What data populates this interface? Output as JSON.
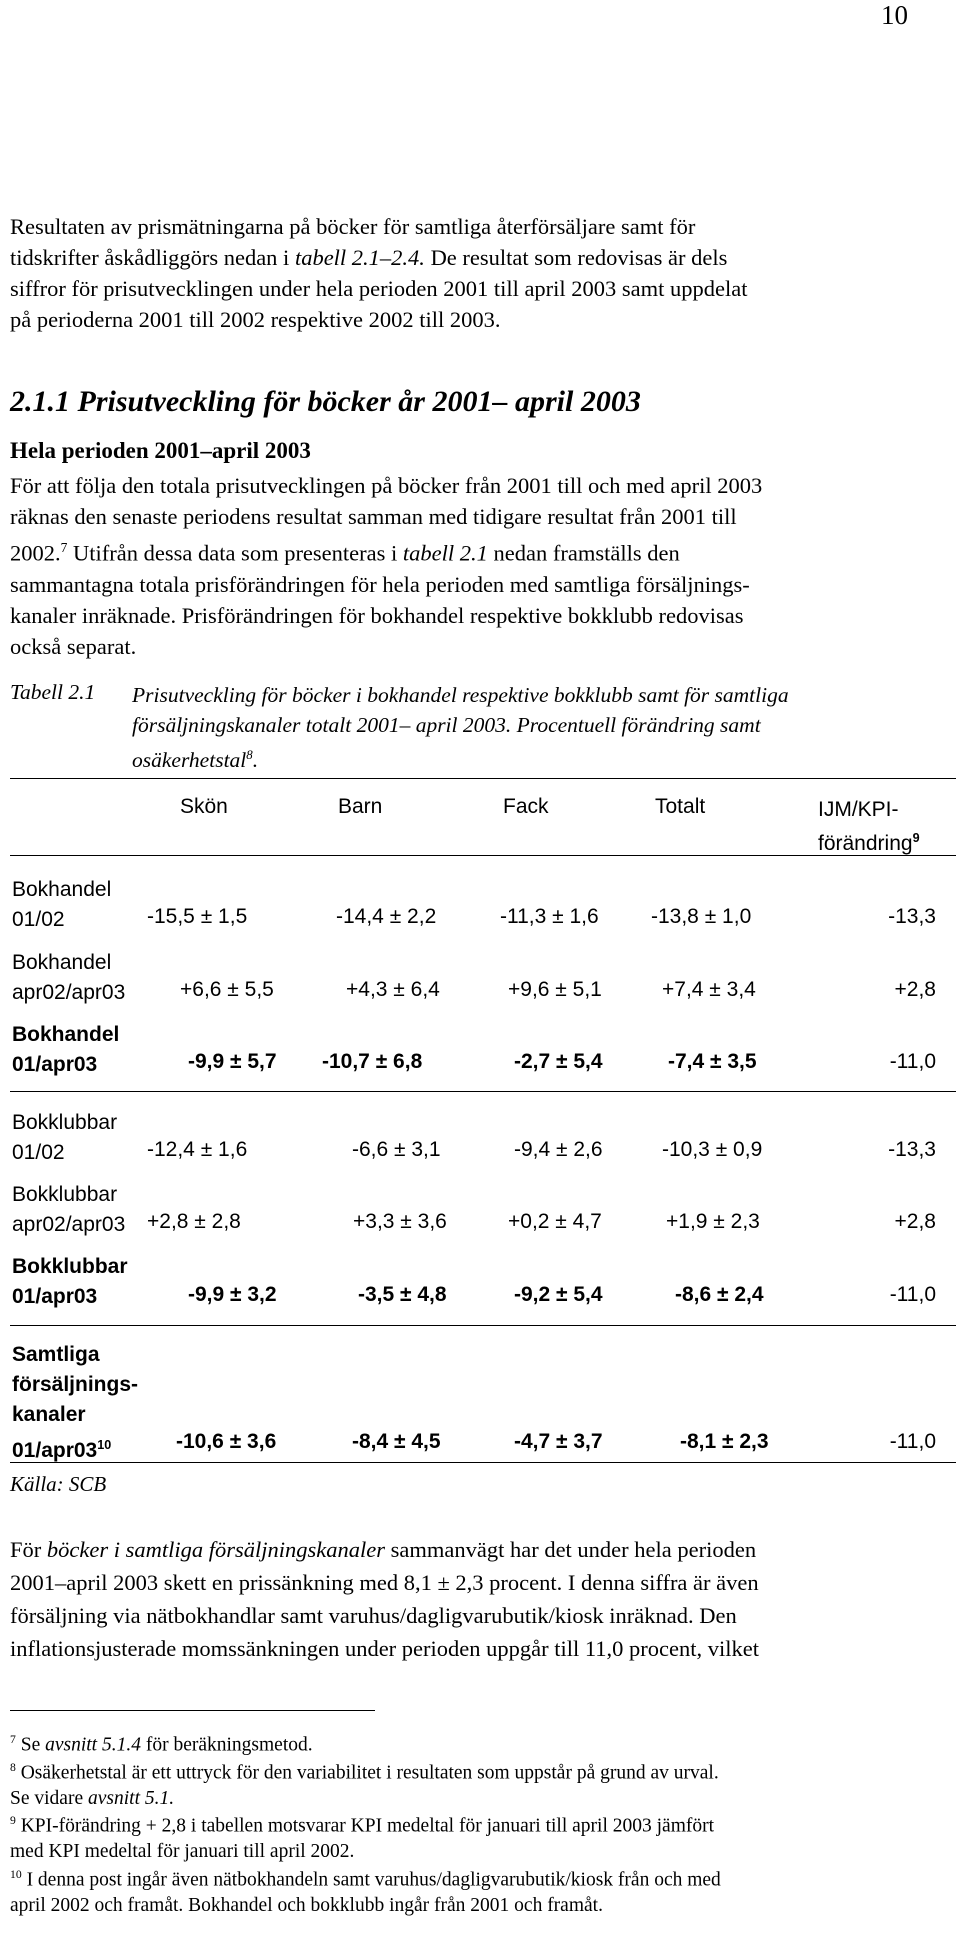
{
  "page_number": "10",
  "intro": {
    "p1": "Resultaten av prismätningarna på böcker för samtliga återförsäljare samt för",
    "p2a": "tidskrifter åskådliggörs nedan i ",
    "p2_ref": "tabell 2.1–2.4.",
    "p2b": " De resultat som redovisas är dels",
    "p3": "siffror för prisutvecklingen under hela perioden 2001 till april 2003 samt uppdelat",
    "p4": "på perioderna 2001 till 2002 respektive 2002 till 2003."
  },
  "section": {
    "title": "2.1.1 Prisutveckling för böcker år 2001– april 2003",
    "subtitle": "Hela perioden 2001–april 2003",
    "para_l1": "För att följa den totala prisutvecklingen på böcker från 2001 till och med april 2003",
    "para_l2": "räknas den senaste periodens resultat samman med tidigare resultat från 2001 till",
    "para_l3a": "2002.",
    "para_l3_fn": "7",
    "para_l3b": " Utifrån dessa data som presenteras i ",
    "para_l3_ref": "tabell 2.1",
    "para_l3c": " nedan framställs den",
    "para_l4": "sammantagna totala prisförändringen för hela perioden med samtliga försäljnings-",
    "para_l5": "kanaler inräknade. Prisförändringen för bokhandel respektive bokklubb redovisas",
    "para_l6": "också separat."
  },
  "caption": {
    "label": "Tabell 2.1",
    "l1": "Prisutveckling för böcker i bokhandel respektive bokklubb samt för samtliga",
    "l2": "försäljningskanaler totalt 2001– april 2003. Procentuell förändring samt",
    "l3": "osäkerhetstal",
    "l3_fn": "8",
    "l3_end": "."
  },
  "table": {
    "headers": [
      "Skön",
      "Barn",
      "Fack",
      "Totalt"
    ],
    "header_last_l1": "IJM/KPI-",
    "header_last_l2": "förändring",
    "header_last_fn": "9",
    "rows": [
      {
        "l1": "Bokhandel",
        "l2": "01/02",
        "l2_fn": "",
        "vals": [
          "-15,5 ± 1,5",
          "-14,4 ± 2,2",
          "-11,3 ± 1,6",
          "-13,8 ± 1,0",
          "-13,3"
        ]
      },
      {
        "l1": "Bokhandel",
        "l2": "apr02/apr03",
        "l2_fn": "",
        "vals": [
          "+6,6 ± 5,5",
          "+4,3 ± 6,4",
          "+9,6 ± 5,1",
          "+7,4 ± 3,4",
          "+2,8"
        ]
      },
      {
        "l1": "Bokhandel",
        "l2": "01/apr03",
        "l2_fn": "",
        "vals": [
          "-9,9 ± 5,7",
          "-10,7 ± 6,8",
          "-2,7 ± 5,4",
          "-7,4 ± 3,5",
          "-11,0"
        ]
      },
      {
        "l1": "Bokklubbar",
        "l2": "01/02",
        "l2_fn": "",
        "vals": [
          "-12,4 ± 1,6",
          "-6,6 ± 3,1",
          "-9,4 ± 2,6",
          "-10,3 ± 0,9",
          "-13,3"
        ]
      },
      {
        "l1": "Bokklubbar",
        "l2": "apr02/apr03",
        "l2_fn": "",
        "vals": [
          "+2,8 ± 2,8",
          "+3,3 ± 3,6",
          "+0,2 ± 4,7",
          "+1,9 ± 2,3",
          "+2,8"
        ]
      },
      {
        "l1": "Bokklubbar",
        "l2": "01/apr03",
        "l2_fn": "",
        "vals": [
          "-9,9 ± 3,2",
          "-3,5 ± 4,8",
          "-9,2 ± 5,4",
          "-8,6 ± 2,4",
          "-11,0"
        ]
      },
      {
        "l1": "Samtliga",
        "l1b": "försäljnings-",
        "l1c": "kanaler",
        "l2": "01/apr03",
        "l2_fn": "10",
        "vals": [
          "-10,6 ± 3,6",
          "-8,4 ± 4,5",
          "-4,7 ± 3,7",
          "-8,1 ± 2,3",
          "-11,0"
        ]
      }
    ],
    "source": "Källa: SCB"
  },
  "after": {
    "l1a": "För ",
    "l1_it": "böcker i samtliga försäljningskanaler",
    "l1b": " sammanvägt har det under hela perioden",
    "l2": "2001–april 2003 skett en prissänkning med 8,1 ± 2,3 procent. I denna siffra är även",
    "l3": "försäljning via nätbokhandlar samt varuhus/dagligvarubutik/kiosk inräknad. Den",
    "l4": "inflationsjusterade momssänkningen under perioden uppgår till 11,0 procent, vilket"
  },
  "footnotes": {
    "f7_num": "7",
    "f7a": "Se ",
    "f7_it": "avsnitt 5.1.4",
    "f7b": " för beräkningsmetod.",
    "f8_num": "8",
    "f8_l1": "Osäkerhetstal är ett uttryck för den variabilitet i resultaten som uppstår på grund av urval.",
    "f8_l2a": "Se vidare ",
    "f8_it": "avsnitt 5.1.",
    "f9_num": "9",
    "f9_l1": "KPI-förändring + 2,8 i tabellen motsvarar KPI medeltal för januari till april 2003 jämfört",
    "f9_l2": "med KPI medeltal för januari till april 2002.",
    "f10_num": "10",
    "f10_l1": "I denna post ingår även nätbokhandeln samt varuhus/dagligvarubutik/kiosk från och med",
    "f10_l2": "april 2002 och framåt. Bokhandel och bokklubb ingår från 2001 och framåt."
  }
}
